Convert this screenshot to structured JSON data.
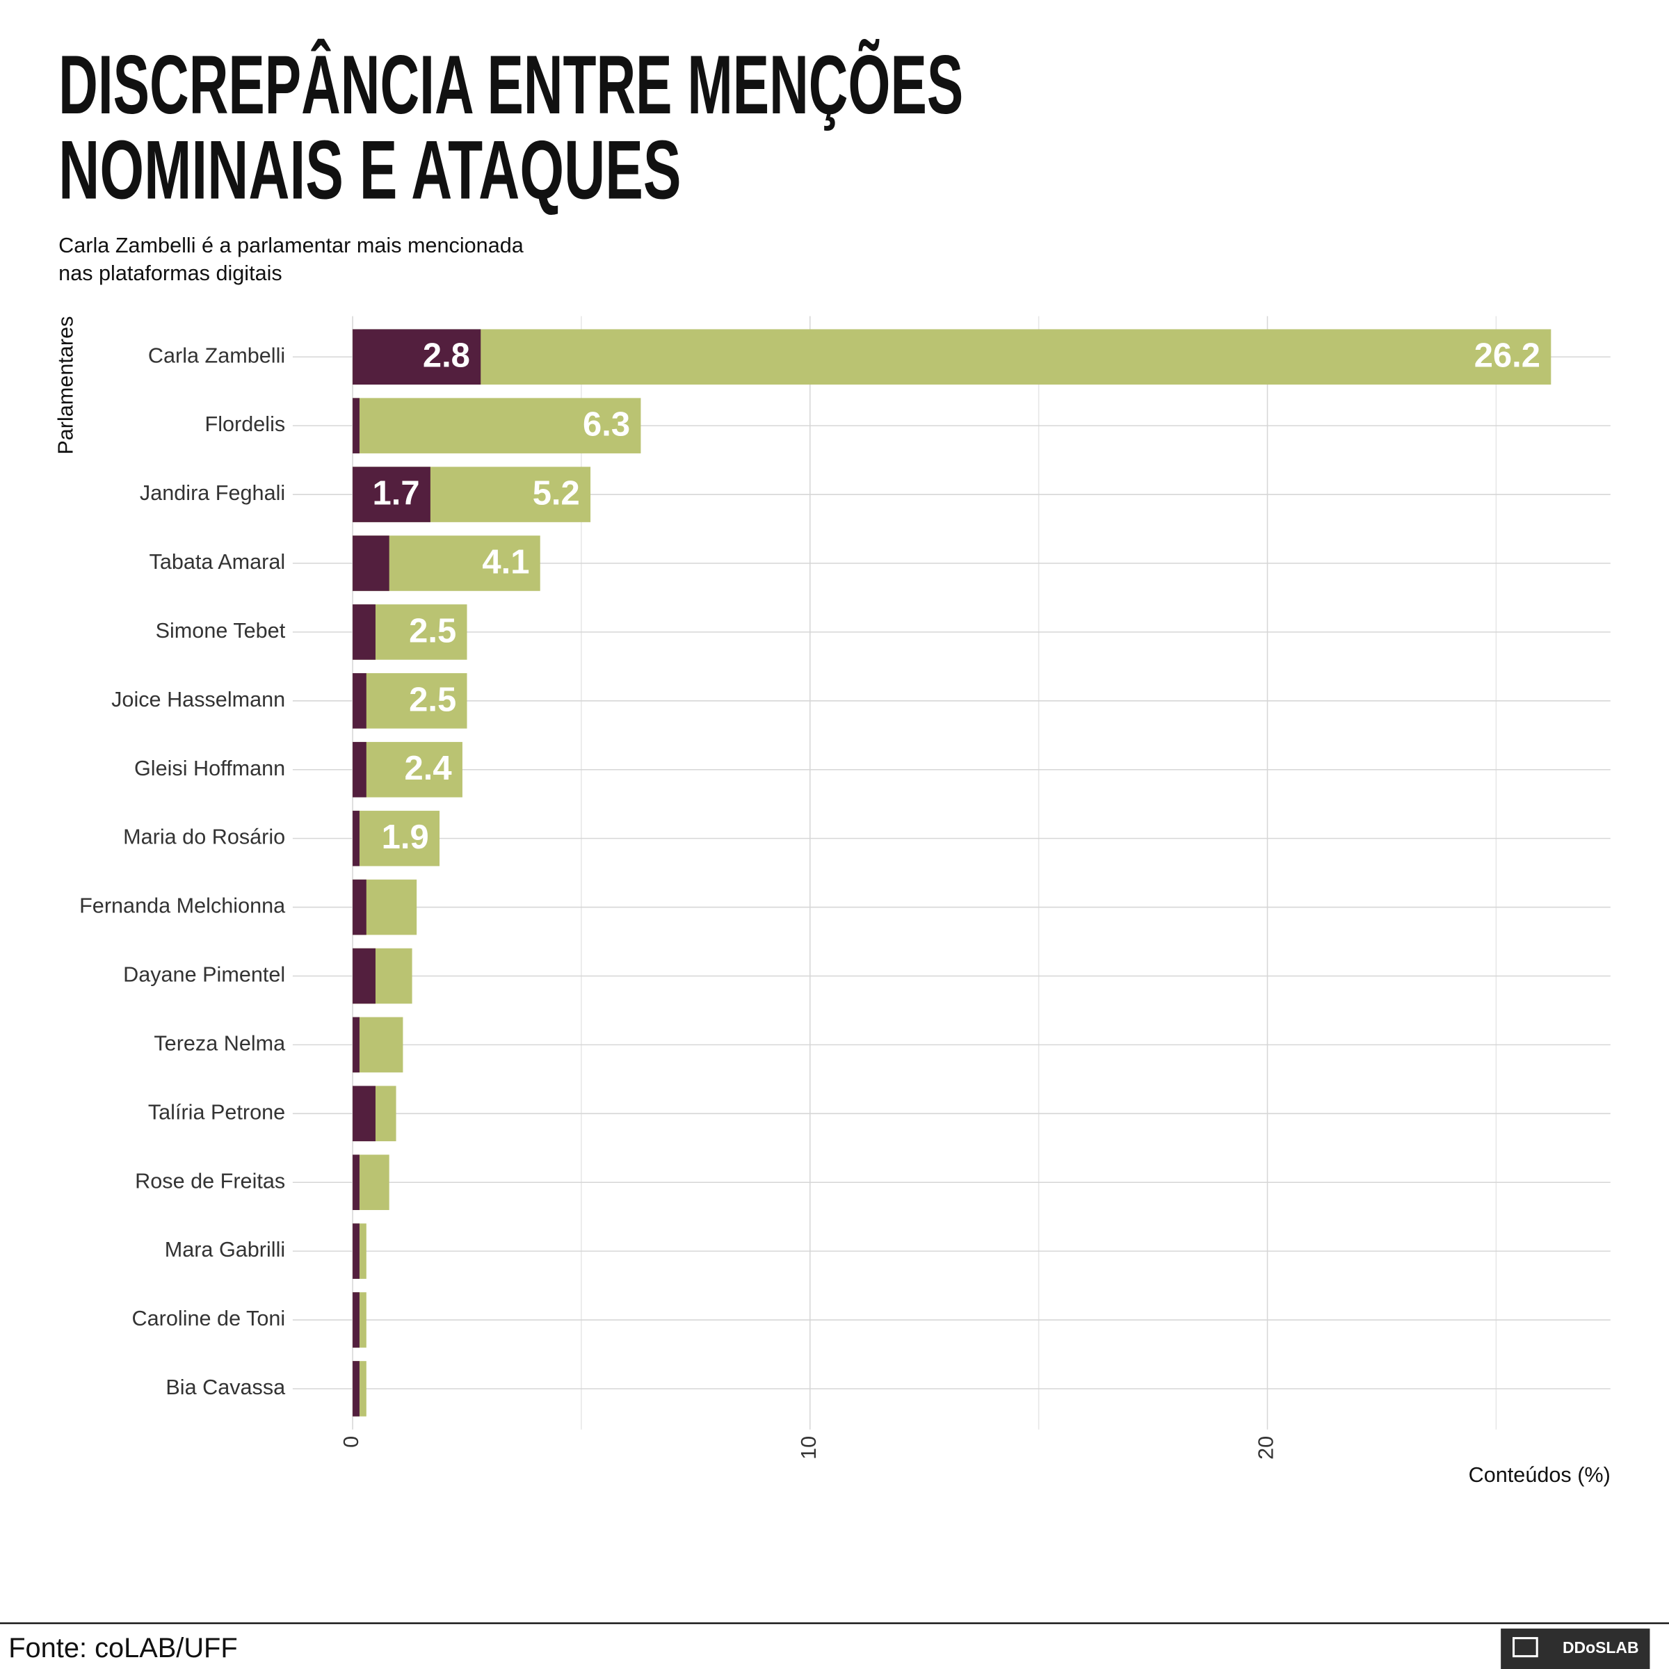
{
  "chart_data": {
    "type": "bar",
    "orientation": "horizontal",
    "title": [
      "DISCREPÂNCIA ENTRE MENÇÕES",
      "NOMINAIS E ATAQUES"
    ],
    "subtitle": [
      "Carla Zambelli é a parlamentar mais mencionada",
      "nas plataformas digitais"
    ],
    "y_label": "Parlamentares",
    "x_label": "Conteúdos (%)",
    "categories": [
      "Carla Zambelli",
      "Flordelis",
      "Jandira Feghali",
      "Tabata Amaral",
      "Simone Tebet",
      "Joice Hasselmann",
      "Gleisi Hoffmann",
      "Maria do Rosário",
      "Fernanda Melchionna",
      "Dayane Pimentel",
      "Tereza Nelma",
      "Talíria Petrone",
      "Rose de Freitas",
      "Mara Gabrilli",
      "Caroline de Toni",
      "Bia Cavassa"
    ],
    "series": [
      {
        "color": "#bac372",
        "values": [
          26.2,
          6.3,
          5.2,
          4.1,
          2.5,
          2.5,
          2.4,
          1.9,
          1.4,
          1.3,
          1.1,
          0.95,
          0.8,
          0.3,
          0.3,
          0.3
        ],
        "value_labels": [
          "26.2",
          "6.3",
          "5.2",
          "4.1",
          "2.5",
          "2.5",
          "2.4",
          "1.9",
          null,
          null,
          null,
          null,
          null,
          null,
          null,
          null
        ]
      },
      {
        "color": "#531f3e",
        "values": [
          2.8,
          0.15,
          1.7,
          0.8,
          0.5,
          0.3,
          0.3,
          0.15,
          0.3,
          0.5,
          0.15,
          0.5,
          0.15,
          0.15,
          0.15,
          0.15
        ],
        "value_labels": [
          "2.8",
          null,
          "1.7",
          null,
          null,
          null,
          null,
          null,
          null,
          null,
          null,
          null,
          null,
          null,
          null,
          null
        ]
      }
    ],
    "xlim": [
      -1.31,
      27.5
    ],
    "xticks": [
      0,
      10,
      20
    ],
    "xminor": [
      5,
      15,
      25
    ],
    "grid": true
  },
  "footer": {
    "source": "Fonte: coLAB/UFF",
    "logo": "DDoSLAB"
  }
}
